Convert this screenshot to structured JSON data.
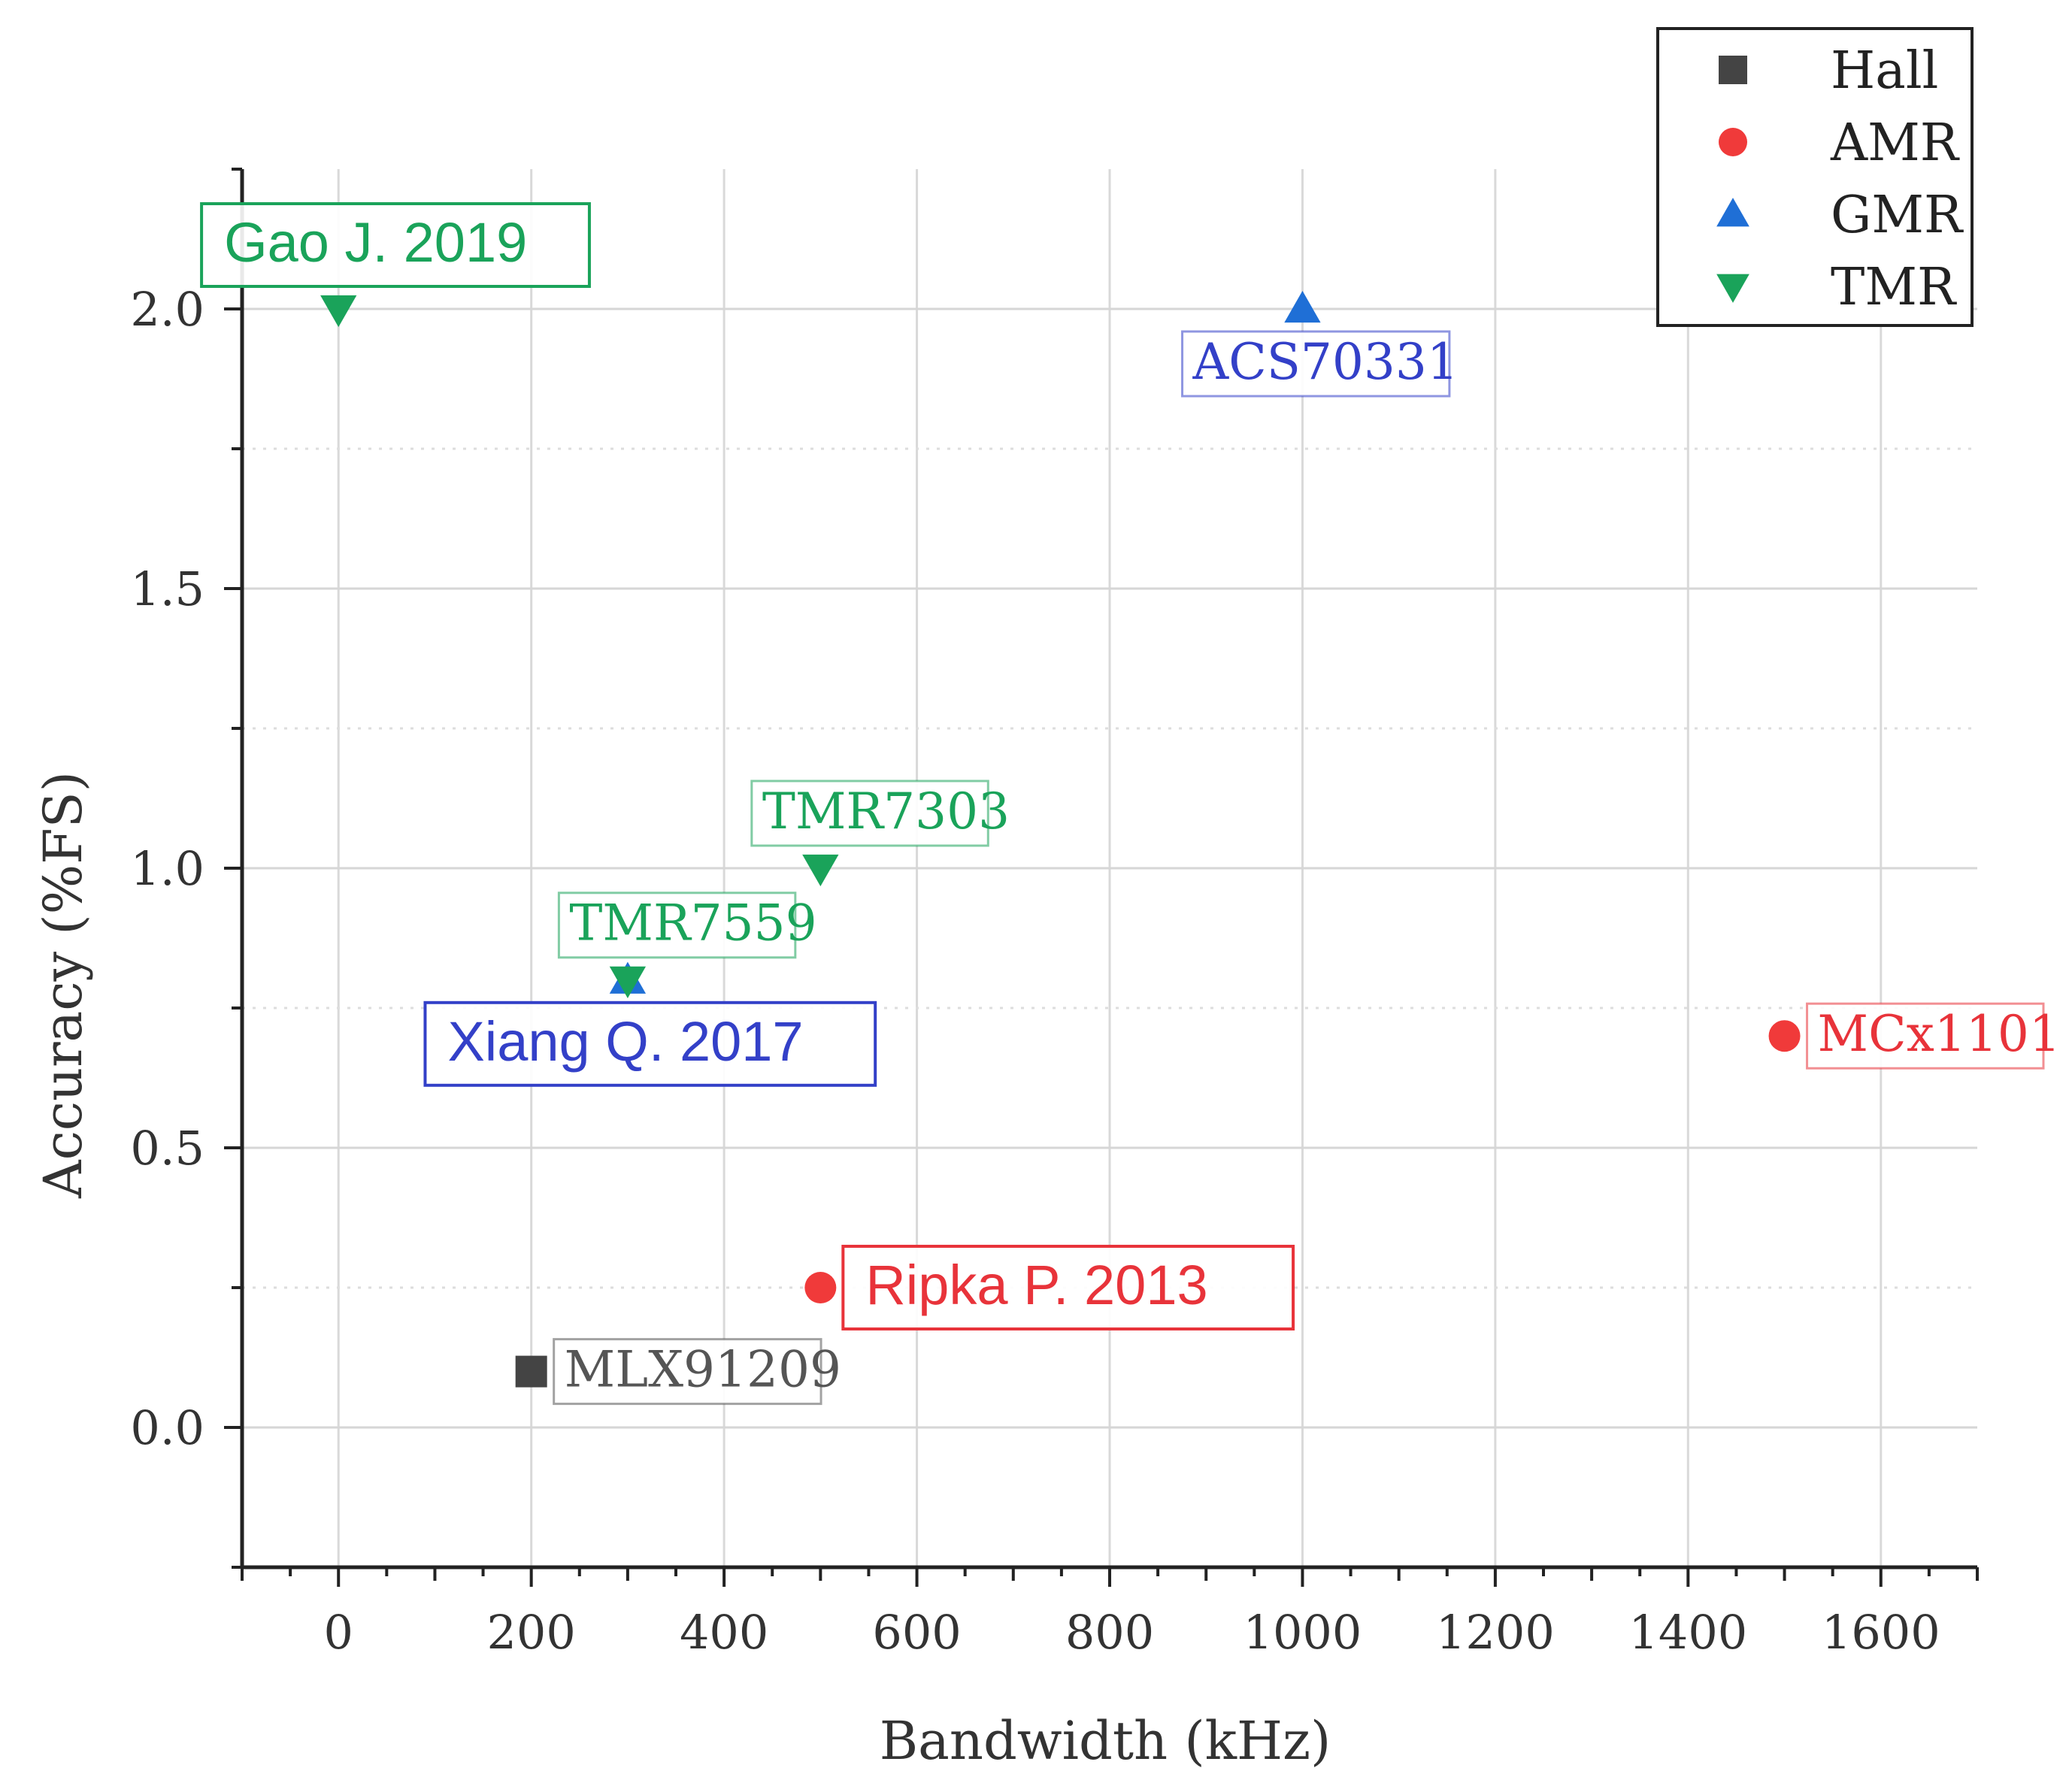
{
  "chart_data": {
    "type": "scatter",
    "xlabel": "Bandwidth (kHz)",
    "ylabel": "Accuracy (%FS)",
    "xlim": [
      -100,
      1700
    ],
    "ylim": [
      -0.25,
      2.25
    ],
    "x_ticks": [
      0,
      200,
      400,
      600,
      800,
      1000,
      1200,
      1400,
      1600
    ],
    "y_ticks": [
      0.0,
      0.5,
      1.0,
      1.5,
      2.0
    ],
    "x_tick_labels": [
      "0",
      "200",
      "400",
      "600",
      "800",
      "1000",
      "1200",
      "1400",
      "1600"
    ],
    "y_tick_labels": [
      "0.0",
      "0.5",
      "1.0",
      "1.5",
      "2.0"
    ],
    "grid": true,
    "legend_position": "top-right",
    "series": [
      {
        "name": "Hall",
        "marker": "square",
        "color": "#444444",
        "points": [
          {
            "x": 200,
            "y": 0.1,
            "label": "MLX91209",
            "label_style": "serif",
            "label_side": "right"
          }
        ]
      },
      {
        "name": "AMR",
        "marker": "circle",
        "color": "#f03a3a",
        "points": [
          {
            "x": 500,
            "y": 0.25,
            "label": "Ripka P. 2013",
            "label_style": "sans",
            "label_side": "right"
          },
          {
            "x": 1500,
            "y": 0.7,
            "label": "MCx1101",
            "label_style": "serif",
            "label_side": "right"
          }
        ]
      },
      {
        "name": "GMR",
        "marker": "triangle-up",
        "color": "#1f6fd6",
        "points": [
          {
            "x": 1000,
            "y": 2.0,
            "label": "ACS70331",
            "label_style": "serif",
            "label_side": "below"
          },
          {
            "x": 300,
            "y": 0.8,
            "label": "Xiang Q. 2017",
            "label_style": "sans",
            "label_side": "below"
          }
        ]
      },
      {
        "name": "TMR",
        "marker": "triangle-down",
        "color": "#1aa35a",
        "points": [
          {
            "x": 0,
            "y": 2.0,
            "label": "Gao J. 2019",
            "label_style": "sans",
            "label_side": "above"
          },
          {
            "x": 500,
            "y": 1.0,
            "label": "TMR7303",
            "label_style": "serif",
            "label_side": "above"
          },
          {
            "x": 300,
            "y": 0.8,
            "label": "TMR7559",
            "label_style": "serif",
            "label_side": "above"
          }
        ]
      }
    ],
    "label_colors": {
      "Hall": "#555555",
      "AMR": "#e8333a",
      "GMR": "#3340c8",
      "TMR": "#1aa35a"
    }
  }
}
